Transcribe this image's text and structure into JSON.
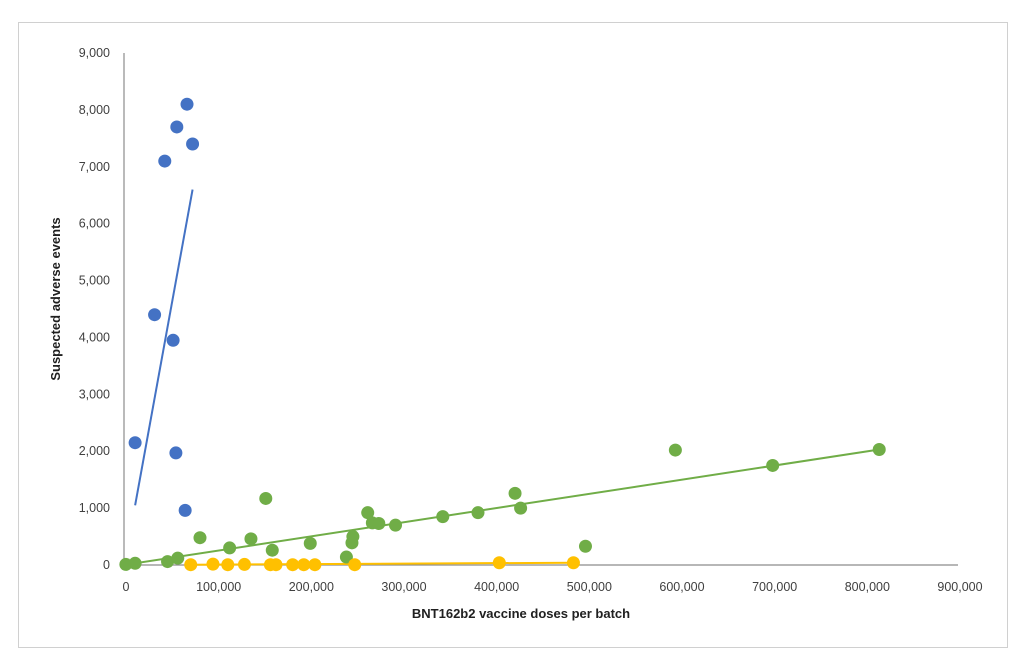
{
  "chart_data": {
    "type": "scatter",
    "title": "",
    "xlabel": "BNT162b2 vaccine doses per batch",
    "ylabel": "Suspected adverse events",
    "xlim": [
      0,
      900000
    ],
    "ylim": [
      0,
      9000
    ],
    "xticks": [
      0,
      100000,
      200000,
      300000,
      400000,
      500000,
      600000,
      700000,
      800000,
      900000
    ],
    "xtick_labels": [
      "0",
      "100,000",
      "200,000",
      "300,000",
      "400,000",
      "500,000",
      "600,000",
      "700,000",
      "800,000",
      "900,000"
    ],
    "yticks": [
      0,
      1000,
      2000,
      3000,
      4000,
      5000,
      6000,
      7000,
      8000,
      9000
    ],
    "ytick_labels": [
      "0",
      "1,000",
      "2,000",
      "3,000",
      "4,000",
      "5,000",
      "6,000",
      "7,000",
      "8,000",
      "9,000"
    ],
    "grid": false,
    "legend": "none",
    "series": [
      {
        "color": "#4472C4",
        "points": [
          [
            12000,
            2150
          ],
          [
            33000,
            4400
          ],
          [
            44000,
            7100
          ],
          [
            53000,
            3950
          ],
          [
            56000,
            1970
          ],
          [
            57000,
            7700
          ],
          [
            66000,
            960
          ],
          [
            68000,
            8100
          ],
          [
            74000,
            7400
          ]
        ],
        "trendline": [
          [
            12000,
            1050
          ],
          [
            74000,
            6600
          ]
        ]
      },
      {
        "color": "#70AD47",
        "points": [
          [
            2000,
            10
          ],
          [
            12000,
            30
          ],
          [
            47000,
            60
          ],
          [
            58000,
            120
          ],
          [
            82000,
            480
          ],
          [
            114000,
            300
          ],
          [
            137000,
            460
          ],
          [
            153000,
            1170
          ],
          [
            160000,
            260
          ],
          [
            201000,
            380
          ],
          [
            240000,
            140
          ],
          [
            246000,
            390
          ],
          [
            247000,
            500
          ],
          [
            263000,
            920
          ],
          [
            268000,
            740
          ],
          [
            275000,
            730
          ],
          [
            293000,
            700
          ],
          [
            344000,
            850
          ],
          [
            382000,
            920
          ],
          [
            422000,
            1260
          ],
          [
            428000,
            1000
          ],
          [
            498000,
            330
          ],
          [
            595000,
            2020
          ],
          [
            700000,
            1750
          ],
          [
            815000,
            2030
          ]
        ],
        "trendline": [
          [
            0,
            0
          ],
          [
            815000,
            2030
          ]
        ]
      },
      {
        "color": "#FFC000",
        "points": [
          [
            72000,
            5
          ],
          [
            96000,
            15
          ],
          [
            112000,
            5
          ],
          [
            130000,
            10
          ],
          [
            158000,
            5
          ],
          [
            164000,
            5
          ],
          [
            182000,
            5
          ],
          [
            194000,
            5
          ],
          [
            206000,
            5
          ],
          [
            249000,
            5
          ],
          [
            405000,
            40
          ],
          [
            485000,
            40
          ]
        ],
        "trendline": [
          [
            72000,
            5
          ],
          [
            485000,
            40
          ]
        ]
      }
    ]
  }
}
